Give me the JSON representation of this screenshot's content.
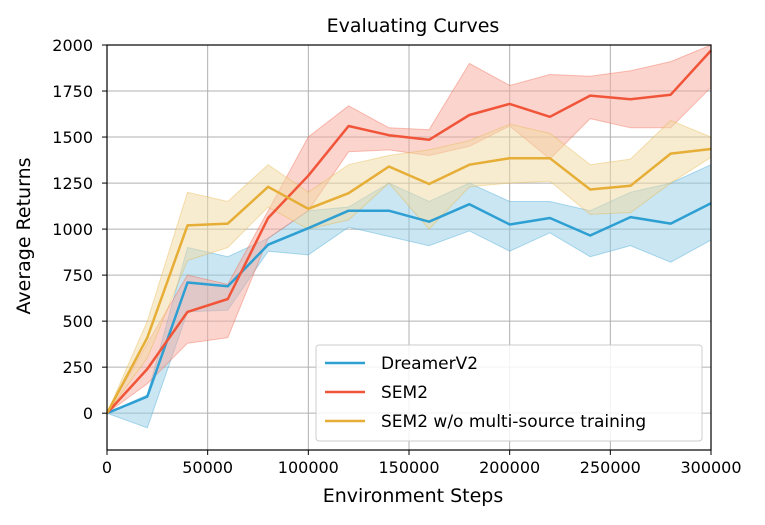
{
  "chart_data": {
    "type": "line",
    "title": "Evaluating Curves",
    "xlabel": "Environment Steps",
    "ylabel": "Average Returns",
    "xlim": [
      0,
      300000
    ],
    "ylim": [
      -200,
      2000
    ],
    "x_ticks": [
      0,
      50000,
      100000,
      150000,
      200000,
      250000,
      300000
    ],
    "x_tick_labels": [
      "0",
      "50000",
      "100000",
      "150000",
      "200000",
      "250000",
      "300000"
    ],
    "y_ticks": [
      0,
      250,
      500,
      750,
      1000,
      1250,
      1500,
      1750,
      2000
    ],
    "y_tick_labels": [
      "0",
      "250",
      "500",
      "750",
      "1000",
      "1250",
      "1500",
      "1750",
      "2000"
    ],
    "grid": true,
    "legend_position": "bottom-right",
    "x": [
      0,
      20000,
      40000,
      60000,
      80000,
      100000,
      120000,
      140000,
      160000,
      180000,
      200000,
      220000,
      240000,
      260000,
      280000,
      300000
    ],
    "series": [
      {
        "name": "DreamerV2",
        "color": "#2e9fd2",
        "fill": "#93cde6",
        "values": [
          0,
          90,
          710,
          690,
          915,
          1005,
          1100,
          1100,
          1040,
          1135,
          1025,
          1060,
          965,
          1065,
          1030,
          1140
        ],
        "upper": [
          0,
          100,
          900,
          850,
          950,
          1100,
          1120,
          1250,
          1150,
          1250,
          1150,
          1150,
          1100,
          1200,
          1250,
          1350
        ],
        "lower": [
          0,
          -80,
          550,
          560,
          880,
          860,
          1010,
          960,
          910,
          990,
          880,
          980,
          850,
          910,
          820,
          940
        ]
      },
      {
        "name": "SEM2",
        "color": "#f15539",
        "fill": "#f8aa9d",
        "values": [
          0,
          240,
          550,
          620,
          1060,
          1290,
          1560,
          1510,
          1485,
          1620,
          1680,
          1610,
          1725,
          1705,
          1730,
          1970
        ],
        "upper": [
          0,
          380,
          750,
          700,
          1100,
          1500,
          1670,
          1550,
          1540,
          1900,
          1780,
          1840,
          1830,
          1860,
          1910,
          2000
        ],
        "lower": [
          0,
          160,
          380,
          410,
          950,
          1100,
          1420,
          1430,
          1400,
          1450,
          1560,
          1380,
          1600,
          1550,
          1550,
          1770
        ]
      },
      {
        "name": "SEM2 w/o multi-source training",
        "color": "#e6ae36",
        "fill": "#f1d9a2",
        "values": [
          0,
          410,
          1020,
          1030,
          1230,
          1110,
          1195,
          1340,
          1245,
          1350,
          1385,
          1385,
          1215,
          1235,
          1410,
          1435
        ],
        "upper": [
          0,
          500,
          1200,
          1150,
          1350,
          1200,
          1350,
          1400,
          1430,
          1480,
          1570,
          1520,
          1350,
          1380,
          1590,
          1500
        ],
        "lower": [
          0,
          300,
          830,
          900,
          1120,
          1000,
          1050,
          1250,
          1000,
          1230,
          1250,
          1260,
          1080,
          1090,
          1250,
          1390
        ]
      }
    ]
  }
}
